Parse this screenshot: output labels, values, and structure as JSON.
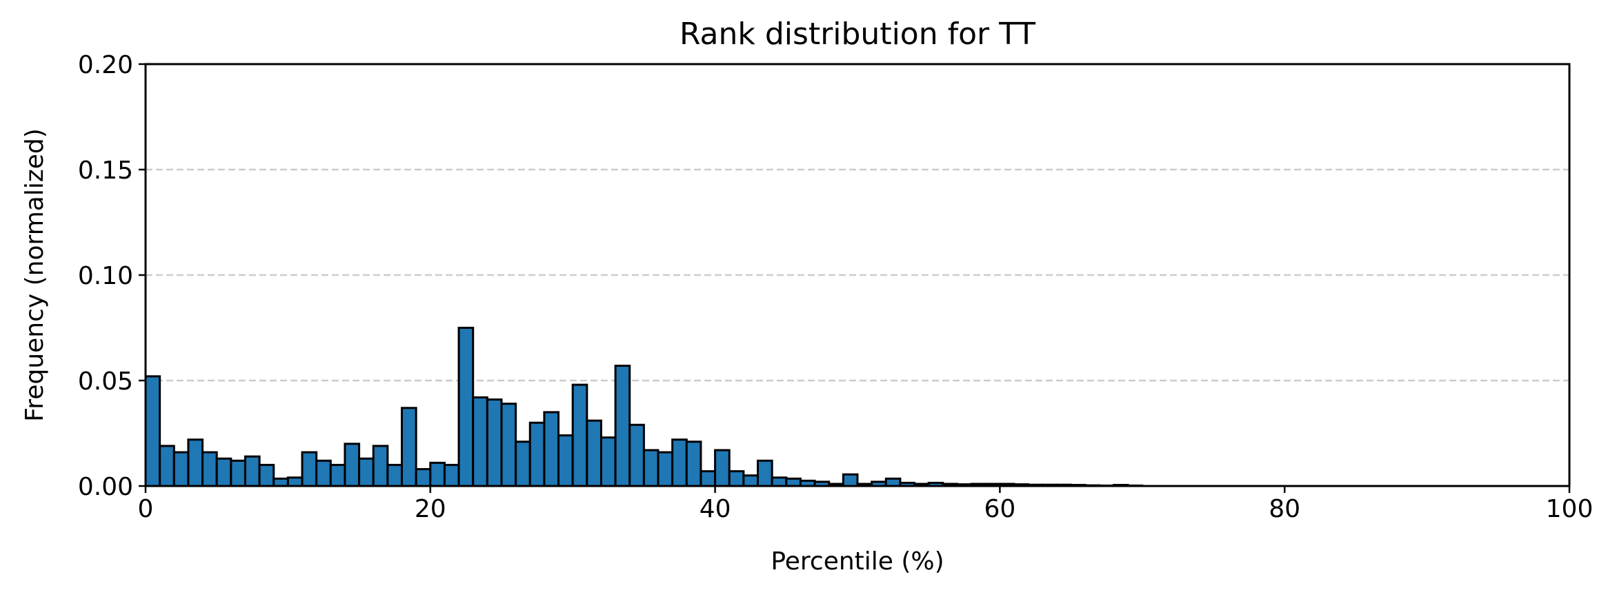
{
  "chart_data": {
    "type": "bar",
    "title": "Rank distribution for TT",
    "xlabel": "Percentile (%)",
    "ylabel": "Frequency (normalized)",
    "xlim": [
      0,
      100
    ],
    "ylim": [
      0,
      0.2
    ],
    "xticks": [
      0,
      20,
      40,
      60,
      80,
      100
    ],
    "xtick_labels": [
      "0",
      "20",
      "40",
      "60",
      "80",
      "100"
    ],
    "yticks": [
      0,
      0.05,
      0.1,
      0.15,
      0.2
    ],
    "ytick_labels": [
      "0.00",
      "0.05",
      "0.10",
      "0.15",
      "0.20"
    ],
    "grid": "y-dashed",
    "bin_width": 1,
    "bin_starts": [
      0,
      1,
      2,
      3,
      4,
      5,
      6,
      7,
      8,
      9,
      10,
      11,
      12,
      13,
      14,
      15,
      16,
      17,
      18,
      19,
      20,
      21,
      22,
      23,
      24,
      25,
      26,
      27,
      28,
      29,
      30,
      31,
      32,
      33,
      34,
      35,
      36,
      37,
      38,
      39,
      40,
      41,
      42,
      43,
      44,
      45,
      46,
      47,
      48,
      49,
      50,
      51,
      52,
      53,
      54,
      55,
      56,
      57,
      58,
      59,
      60,
      61,
      62,
      63,
      64,
      65,
      66,
      67,
      68,
      69,
      70,
      71,
      72,
      73,
      74,
      75,
      76,
      77,
      78,
      79,
      80,
      81,
      82,
      83,
      84,
      85,
      86,
      87,
      88,
      89,
      90,
      91,
      92,
      93,
      94,
      95,
      96,
      97,
      98,
      99
    ],
    "values": [
      0.052,
      0.019,
      0.016,
      0.022,
      0.016,
      0.013,
      0.012,
      0.014,
      0.01,
      0.0035,
      0.004,
      0.016,
      0.012,
      0.01,
      0.02,
      0.013,
      0.019,
      0.01,
      0.037,
      0.008,
      0.011,
      0.01,
      0.075,
      0.042,
      0.041,
      0.039,
      0.021,
      0.03,
      0.035,
      0.024,
      0.048,
      0.031,
      0.023,
      0.057,
      0.029,
      0.017,
      0.016,
      0.022,
      0.021,
      0.007,
      0.017,
      0.007,
      0.005,
      0.012,
      0.004,
      0.0035,
      0.0025,
      0.002,
      0.001,
      0.0055,
      0.001,
      0.002,
      0.0035,
      0.0015,
      0.001,
      0.0015,
      0.001,
      0.0008,
      0.001,
      0.001,
      0.001,
      0.0008,
      0.0006,
      0.0006,
      0.0006,
      0.0005,
      0.0003,
      0.0002,
      0.0005,
      0.0002,
      0,
      0,
      0,
      0,
      0,
      0,
      0,
      0,
      0,
      0,
      0,
      0,
      0,
      0,
      0,
      0,
      0,
      0,
      0,
      0,
      0,
      0,
      0,
      0,
      0,
      0,
      0,
      0,
      0,
      0
    ],
    "bar_color": "#1f77b4",
    "edge_color": "#000000",
    "grid_color": "#cccccc"
  }
}
